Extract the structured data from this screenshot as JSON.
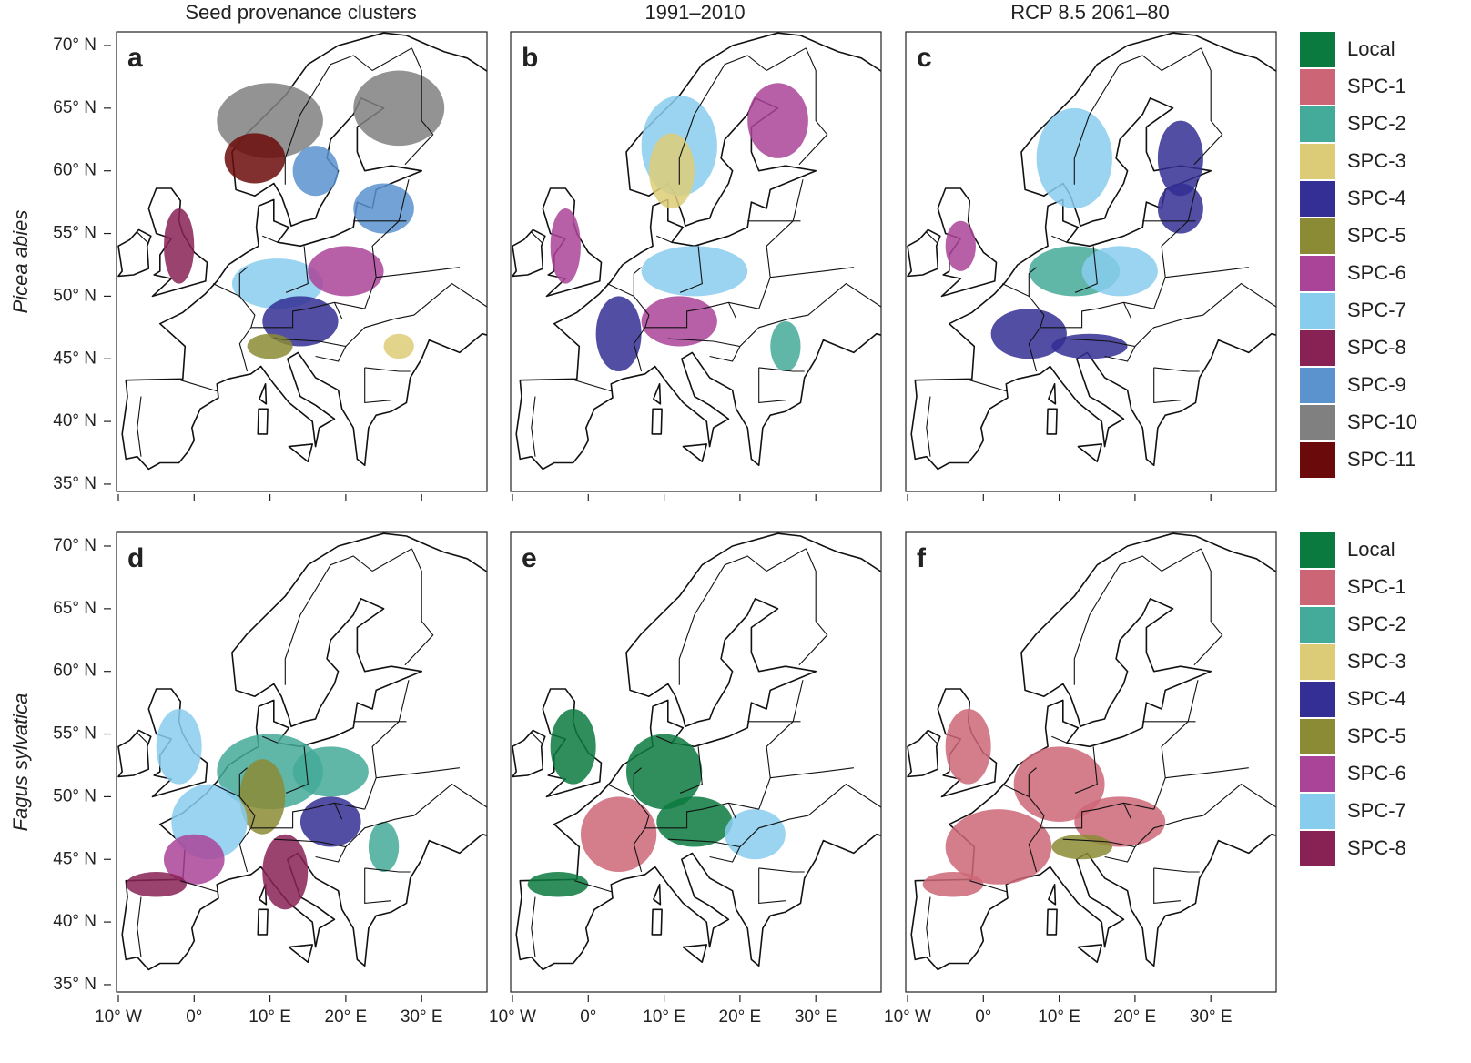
{
  "columns": [
    "Seed provenance clusters",
    "1991–2010",
    "RCP 8.5 2061–80"
  ],
  "rows": [
    {
      "label": "Picea abies",
      "panels": [
        "a",
        "b",
        "c"
      ],
      "legend": [
        {
          "name": "Local",
          "color": "#0b7a3e"
        },
        {
          "name": "SPC-1",
          "color": "#cc6677"
        },
        {
          "name": "SPC-2",
          "color": "#44aa99"
        },
        {
          "name": "SPC-3",
          "color": "#ddcc77"
        },
        {
          "name": "SPC-4",
          "color": "#332f94"
        },
        {
          "name": "SPC-5",
          "color": "#8b8b35"
        },
        {
          "name": "SPC-6",
          "color": "#aa4499"
        },
        {
          "name": "SPC-7",
          "color": "#88ccee"
        },
        {
          "name": "SPC-8",
          "color": "#882255"
        },
        {
          "name": "SPC-9",
          "color": "#5b93cf"
        },
        {
          "name": "SPC-10",
          "color": "#808080"
        },
        {
          "name": "SPC-11",
          "color": "#6b0a0a"
        }
      ]
    },
    {
      "label": "Fagus sylvatica",
      "panels": [
        "d",
        "e",
        "f"
      ],
      "legend": [
        {
          "name": "Local",
          "color": "#0b7a3e"
        },
        {
          "name": "SPC-1",
          "color": "#cc6677"
        },
        {
          "name": "SPC-2",
          "color": "#44aa99"
        },
        {
          "name": "SPC-3",
          "color": "#ddcc77"
        },
        {
          "name": "SPC-4",
          "color": "#332f94"
        },
        {
          "name": "SPC-5",
          "color": "#8b8b35"
        },
        {
          "name": "SPC-6",
          "color": "#aa4499"
        },
        {
          "name": "SPC-7",
          "color": "#88ccee"
        },
        {
          "name": "SPC-8",
          "color": "#882255"
        }
      ]
    }
  ],
  "lat_ticks": [
    {
      "value": 70,
      "label": "70° N"
    },
    {
      "value": 65,
      "label": "65° N"
    },
    {
      "value": 60,
      "label": "60° N"
    },
    {
      "value": 55,
      "label": "55° N"
    },
    {
      "value": 50,
      "label": "50° N"
    },
    {
      "value": 45,
      "label": "45° N"
    },
    {
      "value": 40,
      "label": "40° N"
    },
    {
      "value": 35,
      "label": "35° N"
    }
  ],
  "lon_ticks": [
    {
      "value": -10,
      "label": "10° W"
    },
    {
      "value": 0,
      "label": "0°"
    },
    {
      "value": 10,
      "label": "10° E"
    },
    {
      "value": 20,
      "label": "20° E"
    },
    {
      "value": 30,
      "label": "30° E"
    }
  ]
}
